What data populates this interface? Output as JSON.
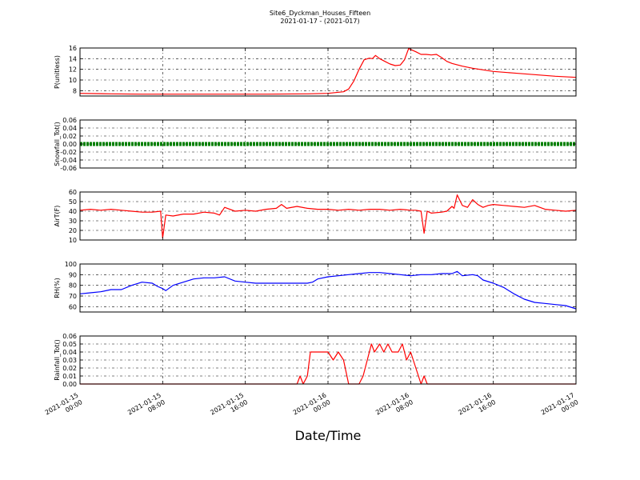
{
  "chart_data": {
    "type": "line",
    "title": "Site6_Dyckman_Houses_Fifteen",
    "subtitle": "2021-01-17 - (2021-017)",
    "xlabel": "Date/Time",
    "x_ticks": [
      {
        "line1": "2021-01-15",
        "line2": "00:00",
        "hour": 0
      },
      {
        "line1": "2021-01-15",
        "line2": "08:00",
        "hour": 8
      },
      {
        "line1": "2021-01-15",
        "line2": "16:00",
        "hour": 16
      },
      {
        "line1": "2021-01-16",
        "line2": "00:00",
        "hour": 24
      },
      {
        "line1": "2021-01-16",
        "line2": "08:00",
        "hour": 32
      },
      {
        "line1": "2021-01-16",
        "line2": "16:00",
        "hour": 40
      },
      {
        "line1": "2021-01-17",
        "line2": "00:00",
        "hour": 48
      }
    ],
    "xlim_hours": [
      0,
      48
    ],
    "grid": true,
    "panels": [
      {
        "ylabel": "P(unitless)",
        "ylim": [
          7,
          16
        ],
        "yticks": [
          "8",
          "10",
          "12",
          "14",
          "16"
        ],
        "ytick_values": [
          8,
          10,
          12,
          14,
          16
        ],
        "series": [
          {
            "color": "#ff0000",
            "points": [
              [
                0,
                7.5
              ],
              [
                3,
                7.4
              ],
              [
                6,
                7.35
              ],
              [
                12,
                7.35
              ],
              [
                18,
                7.35
              ],
              [
                22,
                7.4
              ],
              [
                24,
                7.5
              ],
              [
                25.5,
                7.8
              ],
              [
                26,
                8.3
              ],
              [
                26.5,
                9.8
              ],
              [
                27,
                12
              ],
              [
                27.5,
                13.8
              ],
              [
                28,
                14.1
              ],
              [
                28.3,
                14.0
              ],
              [
                28.6,
                14.6
              ],
              [
                29,
                14.0
              ],
              [
                29.5,
                13.5
              ],
              [
                30,
                13.0
              ],
              [
                30.5,
                12.7
              ],
              [
                31,
                12.8
              ],
              [
                31.4,
                13.8
              ],
              [
                31.8,
                15.9
              ],
              [
                32.5,
                15.3
              ],
              [
                33,
                14.8
              ],
              [
                33.5,
                14.8
              ],
              [
                34,
                14.7
              ],
              [
                34.5,
                14.8
              ],
              [
                35,
                14.2
              ],
              [
                35.5,
                13.5
              ],
              [
                36,
                13.1
              ],
              [
                37,
                12.6
              ],
              [
                38,
                12.2
              ],
              [
                39,
                11.9
              ],
              [
                40,
                11.6
              ],
              [
                42,
                11.3
              ],
              [
                44,
                11.0
              ],
              [
                46,
                10.7
              ],
              [
                48,
                10.5
              ]
            ]
          }
        ]
      },
      {
        "ylabel": "Snowfall_Tot()",
        "ylim": [
          -0.06,
          0.06
        ],
        "yticks": [
          "-0.06",
          "-0.04",
          "-0.02",
          "0.00",
          "0.02",
          "0.04",
          "0.06"
        ],
        "ytick_values": [
          -0.06,
          -0.04,
          -0.02,
          0,
          0.02,
          0.04,
          0.06
        ],
        "series": [
          {
            "color": "#008000",
            "marker": "dot",
            "points": [
              [
                0,
                0
              ],
              [
                48,
                0
              ]
            ]
          }
        ]
      },
      {
        "ylabel": "AirT(F)",
        "ylim": [
          10,
          60
        ],
        "yticks": [
          "10",
          "20",
          "30",
          "40",
          "50",
          "60"
        ],
        "ytick_values": [
          10,
          20,
          30,
          40,
          50,
          60
        ],
        "series": [
          {
            "color": "#ff0000",
            "points": [
              [
                0,
                41
              ],
              [
                1,
                42
              ],
              [
                2,
                41
              ],
              [
                3,
                42
              ],
              [
                4,
                41
              ],
              [
                5,
                40
              ],
              [
                6,
                39
              ],
              [
                7,
                39
              ],
              [
                7.8,
                40
              ],
              [
                8,
                12
              ],
              [
                8.3,
                36
              ],
              [
                9,
                35
              ],
              [
                10,
                37
              ],
              [
                11,
                37
              ],
              [
                12,
                39
              ],
              [
                13,
                38
              ],
              [
                13.5,
                36
              ],
              [
                14,
                44
              ],
              [
                15,
                40
              ],
              [
                16,
                41
              ],
              [
                17,
                40
              ],
              [
                18,
                42
              ],
              [
                19,
                43
              ],
              [
                19.5,
                47
              ],
              [
                20,
                43
              ],
              [
                21,
                45
              ],
              [
                22,
                43
              ],
              [
                23,
                42
              ],
              [
                24,
                42
              ],
              [
                25,
                41
              ],
              [
                26,
                42
              ],
              [
                27,
                41
              ],
              [
                28,
                42
              ],
              [
                29,
                42
              ],
              [
                30,
                41
              ],
              [
                31,
                42
              ],
              [
                32,
                41
              ],
              [
                32.5,
                41
              ],
              [
                33,
                40
              ],
              [
                33.3,
                17
              ],
              [
                33.6,
                40
              ],
              [
                34,
                38
              ],
              [
                35,
                39
              ],
              [
                35.5,
                40
              ],
              [
                36,
                45
              ],
              [
                36.2,
                43
              ],
              [
                36.5,
                57
              ],
              [
                37,
                46
              ],
              [
                37.5,
                44
              ],
              [
                38,
                52
              ],
              [
                38.5,
                47
              ],
              [
                39,
                44
              ],
              [
                39.5,
                46
              ],
              [
                40,
                47
              ],
              [
                41,
                46
              ],
              [
                42,
                45
              ],
              [
                43,
                44
              ],
              [
                44,
                46
              ],
              [
                45,
                42
              ],
              [
                46,
                41
              ],
              [
                47,
                40
              ],
              [
                48,
                41
              ]
            ]
          }
        ]
      },
      {
        "ylabel": "RH(%)",
        "ylim": [
          55,
          100
        ],
        "yticks": [
          "60",
          "70",
          "80",
          "90",
          "100"
        ],
        "ytick_values": [
          60,
          70,
          80,
          90,
          100
        ],
        "series": [
          {
            "color": "#0000ff",
            "points": [
              [
                0,
                72
              ],
              [
                1,
                73
              ],
              [
                2,
                74
              ],
              [
                3,
                76
              ],
              [
                4,
                76
              ],
              [
                5,
                80
              ],
              [
                6,
                83
              ],
              [
                7,
                82
              ],
              [
                7.5,
                79
              ],
              [
                8,
                77
              ],
              [
                8.3,
                75
              ],
              [
                9,
                80
              ],
              [
                10,
                83
              ],
              [
                11,
                86
              ],
              [
                12,
                87
              ],
              [
                13,
                87
              ],
              [
                14,
                88
              ],
              [
                15,
                84
              ],
              [
                16,
                83
              ],
              [
                17,
                82
              ],
              [
                18,
                82
              ],
              [
                19,
                82
              ],
              [
                20,
                82
              ],
              [
                21,
                82
              ],
              [
                22,
                82
              ],
              [
                22.5,
                83
              ],
              [
                23,
                86
              ],
              [
                24,
                88
              ],
              [
                25,
                89
              ],
              [
                26,
                90
              ],
              [
                27,
                91
              ],
              [
                28,
                92
              ],
              [
                29,
                92
              ],
              [
                30,
                91
              ],
              [
                31,
                90
              ],
              [
                32,
                89
              ],
              [
                33,
                90
              ],
              [
                34,
                90
              ],
              [
                35,
                91
              ],
              [
                36,
                91
              ],
              [
                36.5,
                93
              ],
              [
                37,
                89
              ],
              [
                38,
                90
              ],
              [
                38.5,
                89
              ],
              [
                39,
                85
              ],
              [
                40,
                82
              ],
              [
                41,
                78
              ],
              [
                42,
                72
              ],
              [
                43,
                67
              ],
              [
                44,
                64
              ],
              [
                45,
                63
              ],
              [
                46,
                62
              ],
              [
                47,
                61
              ],
              [
                48,
                58
              ]
            ]
          }
        ]
      },
      {
        "ylabel": "Rainfall_Tot()",
        "ylim": [
          0,
          0.06
        ],
        "yticks": [
          "0.00",
          "0.01",
          "0.02",
          "0.03",
          "0.04",
          "0.05",
          "0.06"
        ],
        "ytick_values": [
          0,
          0.01,
          0.02,
          0.03,
          0.04,
          0.05,
          0.06
        ],
        "series": [
          {
            "color": "#ff0000",
            "points": [
              [
                0,
                0
              ],
              [
                21,
                0
              ],
              [
                21.3,
                0.01
              ],
              [
                21.6,
                0.0
              ],
              [
                22,
                0.01
              ],
              [
                22.3,
                0.04
              ],
              [
                23,
                0.04
              ],
              [
                24,
                0.04
              ],
              [
                24.5,
                0.03
              ],
              [
                25,
                0.04
              ],
              [
                25.5,
                0.03
              ],
              [
                26,
                0.0
              ],
              [
                27,
                0.0
              ],
              [
                27.4,
                0.01
              ],
              [
                27.8,
                0.03
              ],
              [
                28.2,
                0.05
              ],
              [
                28.5,
                0.04
              ],
              [
                29,
                0.05
              ],
              [
                29.4,
                0.04
              ],
              [
                29.8,
                0.05
              ],
              [
                30.2,
                0.04
              ],
              [
                30.8,
                0.04
              ],
              [
                31.2,
                0.05
              ],
              [
                31.6,
                0.03
              ],
              [
                32,
                0.04
              ],
              [
                32.5,
                0.02
              ],
              [
                33,
                0.0
              ],
              [
                33.3,
                0.01
              ],
              [
                33.6,
                0.0
              ],
              [
                34,
                0.0
              ],
              [
                48,
                0.0
              ]
            ]
          }
        ]
      }
    ]
  }
}
